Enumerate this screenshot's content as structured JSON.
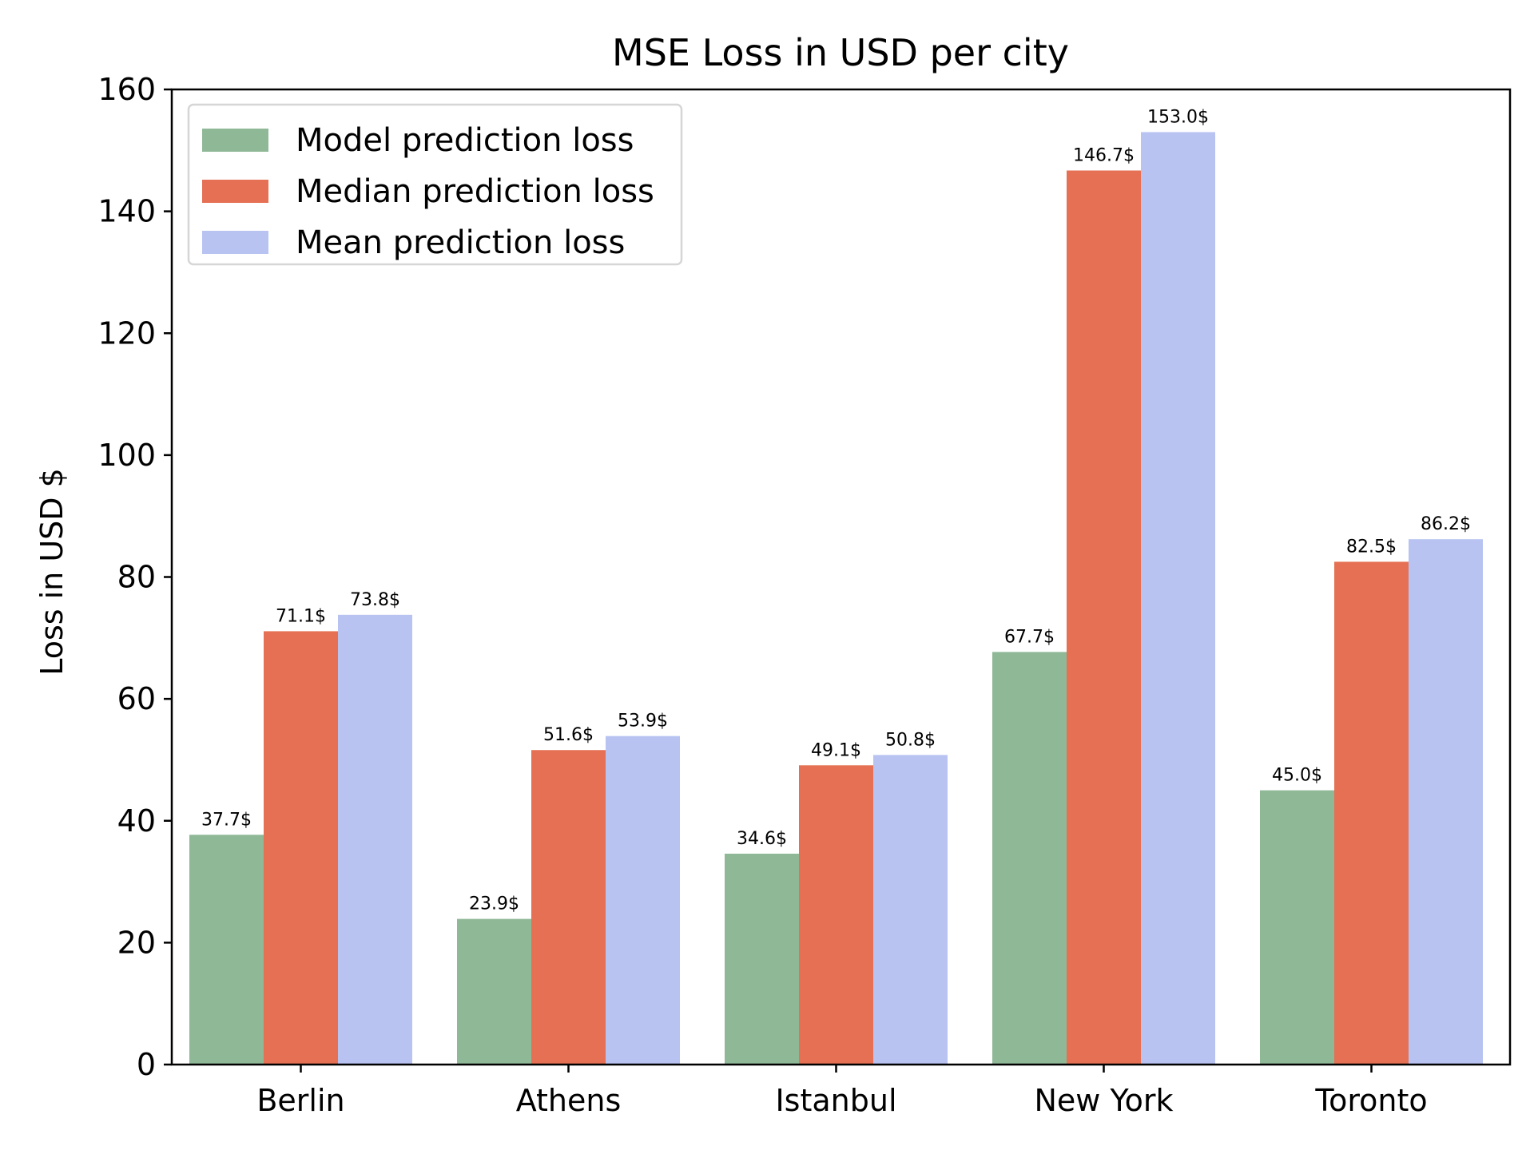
{
  "chart_data": {
    "type": "bar",
    "title": "MSE Loss in USD per city",
    "xlabel": "",
    "ylabel": "Loss in USD $",
    "ylim": [
      0,
      160
    ],
    "yticks": [
      "0",
      "20",
      "40",
      "60",
      "80",
      "100",
      "120",
      "140",
      "160"
    ],
    "categories": [
      "Berlin",
      "Athens",
      "Istanbul",
      "New York",
      "Toronto"
    ],
    "series": [
      {
        "name": "Model prediction loss",
        "color": "#8fb897",
        "values": [
          37.7,
          23.9,
          34.6,
          67.7,
          45.0
        ],
        "labels": [
          "37.7$",
          "23.9$",
          "34.6$",
          "67.7$",
          "45.0$"
        ]
      },
      {
        "name": "Median prediction loss",
        "color": "#e57053",
        "values": [
          71.1,
          51.6,
          49.1,
          146.7,
          82.5
        ],
        "labels": [
          "71.1$",
          "51.6$",
          "49.1$",
          "146.7$",
          "82.5$"
        ]
      },
      {
        "name": "Mean prediction loss",
        "color": "#b8c3f2",
        "values": [
          73.8,
          53.9,
          50.8,
          153.0,
          86.2
        ],
        "labels": [
          "73.8$",
          "53.9$",
          "50.8$",
          "153.0$",
          "86.2$"
        ]
      }
    ],
    "legend_position": "top-left",
    "grid": false
  }
}
